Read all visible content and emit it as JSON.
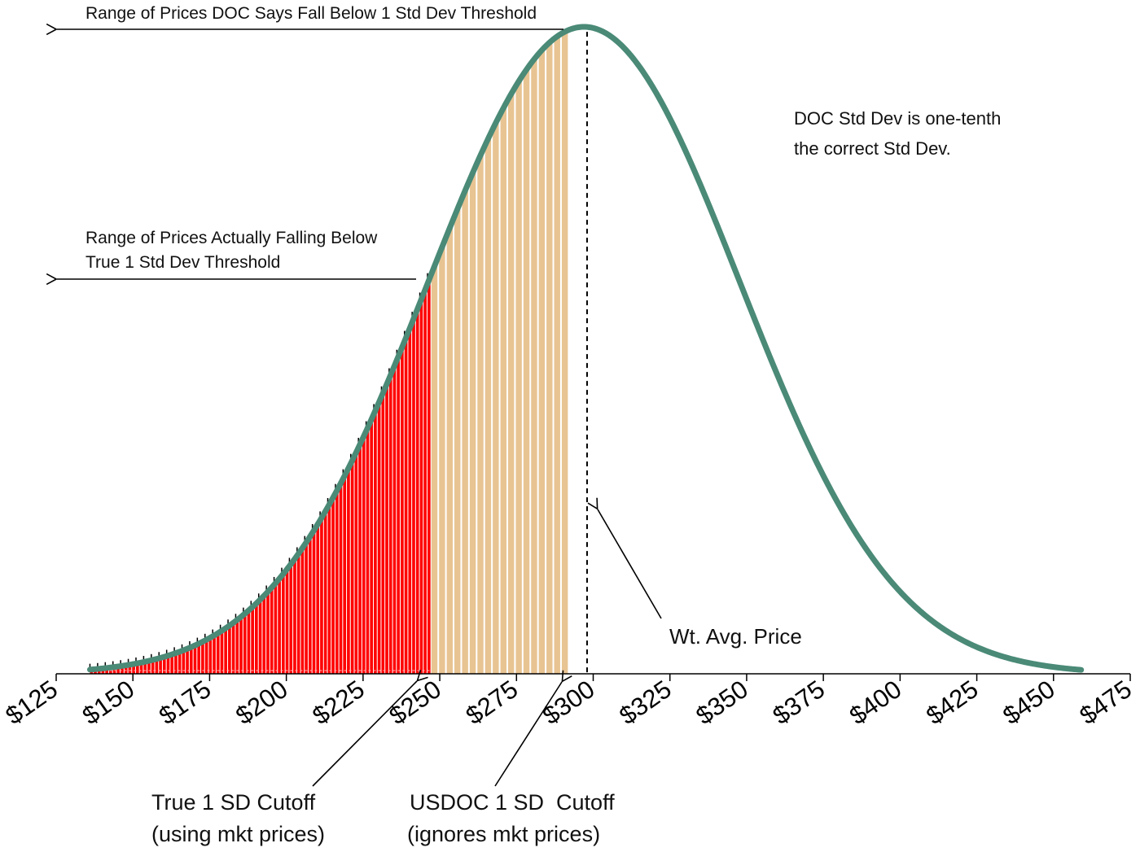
{
  "chart_data": {
    "type": "area",
    "title": "",
    "xlabel": "",
    "ylabel": "",
    "xlim": [
      125,
      475
    ],
    "x_ticks": [
      125,
      150,
      175,
      200,
      225,
      250,
      275,
      300,
      325,
      350,
      375,
      400,
      425,
      450,
      475
    ],
    "x_tick_labels": [
      "$125",
      "$150",
      "$175",
      "$200",
      "$225",
      "$250",
      "$275",
      "$300",
      "$325",
      "$350",
      "$375",
      "$400",
      "$425",
      "$450",
      "$475"
    ],
    "curve": {
      "name": "Price distribution",
      "mean": 297,
      "std_dev": 50.7,
      "x_start": 136,
      "x_end": 459,
      "color": "#4a8a77"
    },
    "shaded_regions": [
      {
        "name": "Below true 1 SD cutoff",
        "x_from": 136,
        "x_to": 247,
        "color": "#ff0000"
      },
      {
        "name": "Below USDOC 1 SD cutoff",
        "x_from": 247,
        "x_to": 292,
        "color": "#e8c493"
      }
    ],
    "mean_line": {
      "x": 298,
      "style": "dashed"
    },
    "annotations": {
      "doc_range": "Range of Prices DOC Says Fall Below 1 Std Dev Threshold",
      "actual_range_line1": "Range of Prices Actually Falling Below",
      "actual_range_line2": "True 1 Std Dev Threshold",
      "doc_note_line1": "DOC Std Dev is one-tenth",
      "doc_note_line2": "the correct Std Dev.",
      "wt_avg": "Wt. Avg. Price",
      "true_cutoff_line1": "True 1 SD Cutoff",
      "true_cutoff_line2": "(using mkt prices)",
      "usdoc_cutoff_line1": "USDOC 1 SD  Cutoff",
      "usdoc_cutoff_line2": "(ignores mkt prices)"
    }
  }
}
